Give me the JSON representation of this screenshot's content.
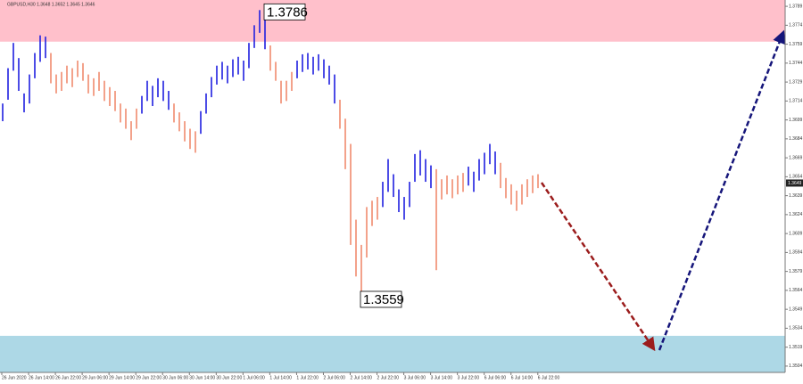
{
  "chart_data": {
    "type": "ohlc",
    "title": "GBPUSD,H30 1.3648 1.3652 1.3645 1.3646",
    "ylim": [
      1.3499,
      1.3794
    ],
    "yticks": [
      1.3789,
      1.3774,
      1.3759,
      1.3744,
      1.3729,
      1.3714,
      1.3699,
      1.3684,
      1.3669,
      1.3654,
      1.3639,
      1.3624,
      1.3609,
      1.3594,
      1.3579,
      1.3564,
      1.3549,
      1.3534,
      1.3519,
      1.3504
    ],
    "categories": [
      "26 Jun 2020",
      "26 Jun 14:00",
      "26 Jun 22:00",
      "29 Jun 06:00",
      "29 Jun 14:00",
      "29 Jun 22:00",
      "30 Jun 06:00",
      "30 Jun 14:00",
      "30 Jun 22:00",
      "1 Jul 06:00",
      "1 Jul 14:00",
      "1 Jul 22:00",
      "2 Jul 06:00",
      "2 Jul 14:00",
      "2 Jul 22:00",
      "3 Jul 06:00",
      "3 Jul 14:00",
      "3 Jul 22:00",
      "6 Jul 06:00",
      "6 Jul 14:00",
      "6 Jul 22:00"
    ],
    "zones": [
      {
        "color": "#ffc0cb",
        "range": [
          1.3761,
          1.3794
        ]
      },
      {
        "color": "#add8e6",
        "range": [
          1.3499,
          1.3528
        ]
      }
    ],
    "extremes": [
      1.3786,
      1.3559
    ],
    "last_price": 1.3649,
    "series": [
      {
        "color": "#1f1fe0",
        "high": [
          1.3712,
          1.374,
          1.376,
          1.3748,
          1.372,
          1.3735,
          1.3752,
          1.3766,
          1.3765
        ],
        "low": [
          1.3698,
          1.3715,
          1.3738,
          1.3722,
          1.3705,
          1.3712,
          1.3732,
          1.3745,
          1.3748
        ]
      },
      {
        "color": "#f08a6e",
        "high": [
          1.3752,
          1.3735,
          1.3737,
          1.3742,
          1.374,
          1.3746,
          1.3744,
          1.3735,
          1.3732,
          1.3737,
          1.373,
          1.3725,
          1.3722,
          1.3712,
          1.3708,
          1.3698,
          1.3708
        ],
        "low": [
          1.3728,
          1.372,
          1.3722,
          1.3728,
          1.3725,
          1.3733,
          1.373,
          1.372,
          1.3718,
          1.3722,
          1.3714,
          1.371,
          1.3706,
          1.3697,
          1.3692,
          1.3683,
          1.3692
        ]
      },
      {
        "color": "#1f1fe0",
        "high": [
          1.3718,
          1.373,
          1.3726,
          1.3732,
          1.373,
          1.3722
        ],
        "low": [
          1.3704,
          1.3714,
          1.371,
          1.3717,
          1.3714,
          1.3707
        ]
      },
      {
        "color": "#f08a6e",
        "high": [
          1.3712,
          1.3705,
          1.3698,
          1.3692,
          1.369
        ],
        "low": [
          1.3697,
          1.369,
          1.3682,
          1.3676,
          1.3673
        ]
      },
      {
        "color": "#1f1fe0",
        "high": [
          1.3706,
          1.372,
          1.3733,
          1.3742,
          1.3745,
          1.3742,
          1.3747,
          1.3749,
          1.3746,
          1.376,
          1.3774,
          1.3786,
          1.3782
        ],
        "low": [
          1.3688,
          1.3704,
          1.3717,
          1.3727,
          1.3731,
          1.3728,
          1.3733,
          1.3735,
          1.373,
          1.374,
          1.3756,
          1.3768,
          1.3755
        ]
      },
      {
        "color": "#f08a6e",
        "high": [
          1.3758,
          1.3745,
          1.373,
          1.373,
          1.3737
        ],
        "low": [
          1.3738,
          1.373,
          1.3712,
          1.3714,
          1.3722
        ]
      },
      {
        "color": "#1f1fe0",
        "high": [
          1.3746,
          1.3751,
          1.3752,
          1.3749,
          1.3751,
          1.3747,
          1.3742,
          1.3735
        ],
        "low": [
          1.3732,
          1.3737,
          1.3739,
          1.3735,
          1.3738,
          1.3732,
          1.3727,
          1.3712
        ]
      },
      {
        "color": "#f08a6e",
        "high": [
          1.3715,
          1.37,
          1.368,
          1.362,
          1.36,
          1.363,
          1.3635,
          1.3638
        ],
        "low": [
          1.3692,
          1.366,
          1.36,
          1.3575,
          1.3559,
          1.359,
          1.3615,
          1.362
        ]
      },
      {
        "color": "#1f1fe0",
        "high": [
          1.365,
          1.3668,
          1.3656,
          1.3644,
          1.3638,
          1.365,
          1.3672,
          1.3675,
          1.3668,
          1.3663
        ],
        "low": [
          1.363,
          1.3642,
          1.3638,
          1.3626,
          1.362,
          1.363,
          1.365,
          1.3655,
          1.365,
          1.3645
        ]
      },
      {
        "color": "#f08a6e",
        "high": [
          1.366,
          1.3652,
          1.3655,
          1.3652,
          1.3655,
          1.3657
        ],
        "low": [
          1.358,
          1.3636,
          1.364,
          1.3637,
          1.364,
          1.3642
        ]
      },
      {
        "color": "#1f1fe0",
        "high": [
          1.3662,
          1.3658,
          1.3668,
          1.3673,
          1.368,
          1.3674
        ],
        "low": [
          1.3647,
          1.3642,
          1.3651,
          1.3656,
          1.3664,
          1.3656
        ]
      },
      {
        "color": "#f08a6e",
        "high": [
          1.3665,
          1.3653,
          1.3648,
          1.3643,
          1.3648,
          1.3652,
          1.3655,
          1.3656
        ],
        "low": [
          1.3645,
          1.3637,
          1.3632,
          1.3627,
          1.3632,
          1.3638,
          1.3641,
          1.3645
        ]
      }
    ]
  }
}
